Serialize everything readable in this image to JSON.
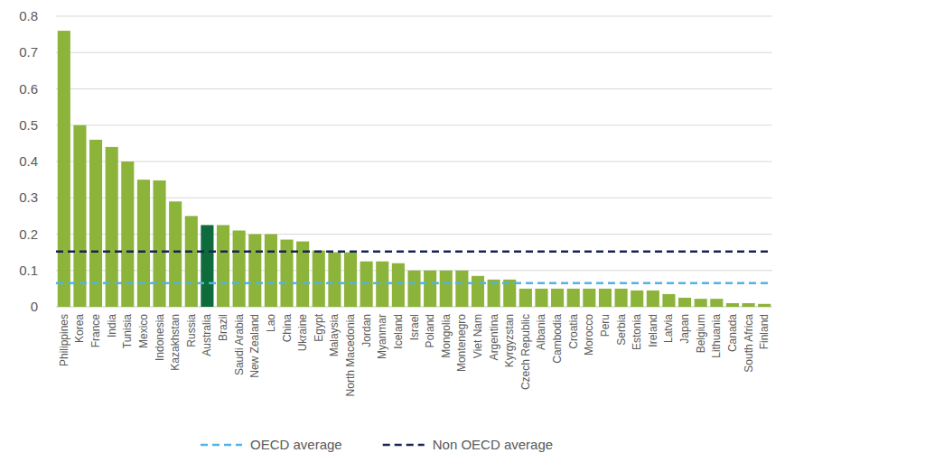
{
  "chart_data": {
    "type": "bar",
    "categories": [
      "Philippines",
      "Korea",
      "France",
      "India",
      "Tunisia",
      "Mexico",
      "Indonesia",
      "Kazakhstan",
      "Russia",
      "Australia",
      "Brazil",
      "Saudi Arabia",
      "New Zealand",
      "Lao",
      "China",
      "Ukraine",
      "Egypt",
      "Malaysia",
      "North Macedonia",
      "Jordan",
      "Myanmar",
      "Iceland",
      "Israel",
      "Poland",
      "Mongolia",
      "Montenegro",
      "Viet Nam",
      "Argentina",
      "Kyrgyzstan",
      "Czech Republic",
      "Albania",
      "Cambodia",
      "Croatia",
      "Morocco",
      "Peru",
      "Serbia",
      "Estonia",
      "Ireland",
      "Latvia",
      "Japan",
      "Belgium",
      "Lithuania",
      "Canada",
      "South Africa",
      "Finland"
    ],
    "values": [
      0.76,
      0.5,
      0.46,
      0.44,
      0.4,
      0.35,
      0.348,
      0.29,
      0.25,
      0.225,
      0.225,
      0.21,
      0.2,
      0.2,
      0.185,
      0.18,
      0.155,
      0.15,
      0.15,
      0.125,
      0.125,
      0.12,
      0.1,
      0.1,
      0.1,
      0.1,
      0.085,
      0.075,
      0.075,
      0.05,
      0.05,
      0.05,
      0.05,
      0.05,
      0.05,
      0.05,
      0.045,
      0.045,
      0.035,
      0.025,
      0.022,
      0.022,
      0.01,
      0.01,
      0.008
    ],
    "colors": [
      "#8cb33a",
      "#8cb33a",
      "#8cb33a",
      "#8cb33a",
      "#8cb33a",
      "#8cb33a",
      "#8cb33a",
      "#8cb33a",
      "#8cb33a",
      "#0e6b3b",
      "#8cb33a",
      "#8cb33a",
      "#8cb33a",
      "#8cb33a",
      "#8cb33a",
      "#8cb33a",
      "#8cb33a",
      "#8cb33a",
      "#8cb33a",
      "#8cb33a",
      "#8cb33a",
      "#8cb33a",
      "#8cb33a",
      "#8cb33a",
      "#8cb33a",
      "#8cb33a",
      "#8cb33a",
      "#8cb33a",
      "#8cb33a",
      "#8cb33a",
      "#8cb33a",
      "#8cb33a",
      "#8cb33a",
      "#8cb33a",
      "#8cb33a",
      "#8cb33a",
      "#8cb33a",
      "#8cb33a",
      "#8cb33a",
      "#8cb33a",
      "#8cb33a",
      "#8cb33a",
      "#8cb33a",
      "#8cb33a",
      "#8cb33a"
    ],
    "reference_lines": [
      {
        "name": "OECD average",
        "value": 0.065,
        "color": "#4fb3e6",
        "line_style": "dashed"
      },
      {
        "name": "Non OECD average",
        "value": 0.152,
        "color": "#1b2553",
        "line_style": "dashed"
      }
    ],
    "ylim": [
      0,
      0.8
    ],
    "yticks": [
      0,
      0.1,
      0.2,
      0.3,
      0.4,
      0.5,
      0.6,
      0.7,
      0.8
    ],
    "grid": true
  }
}
